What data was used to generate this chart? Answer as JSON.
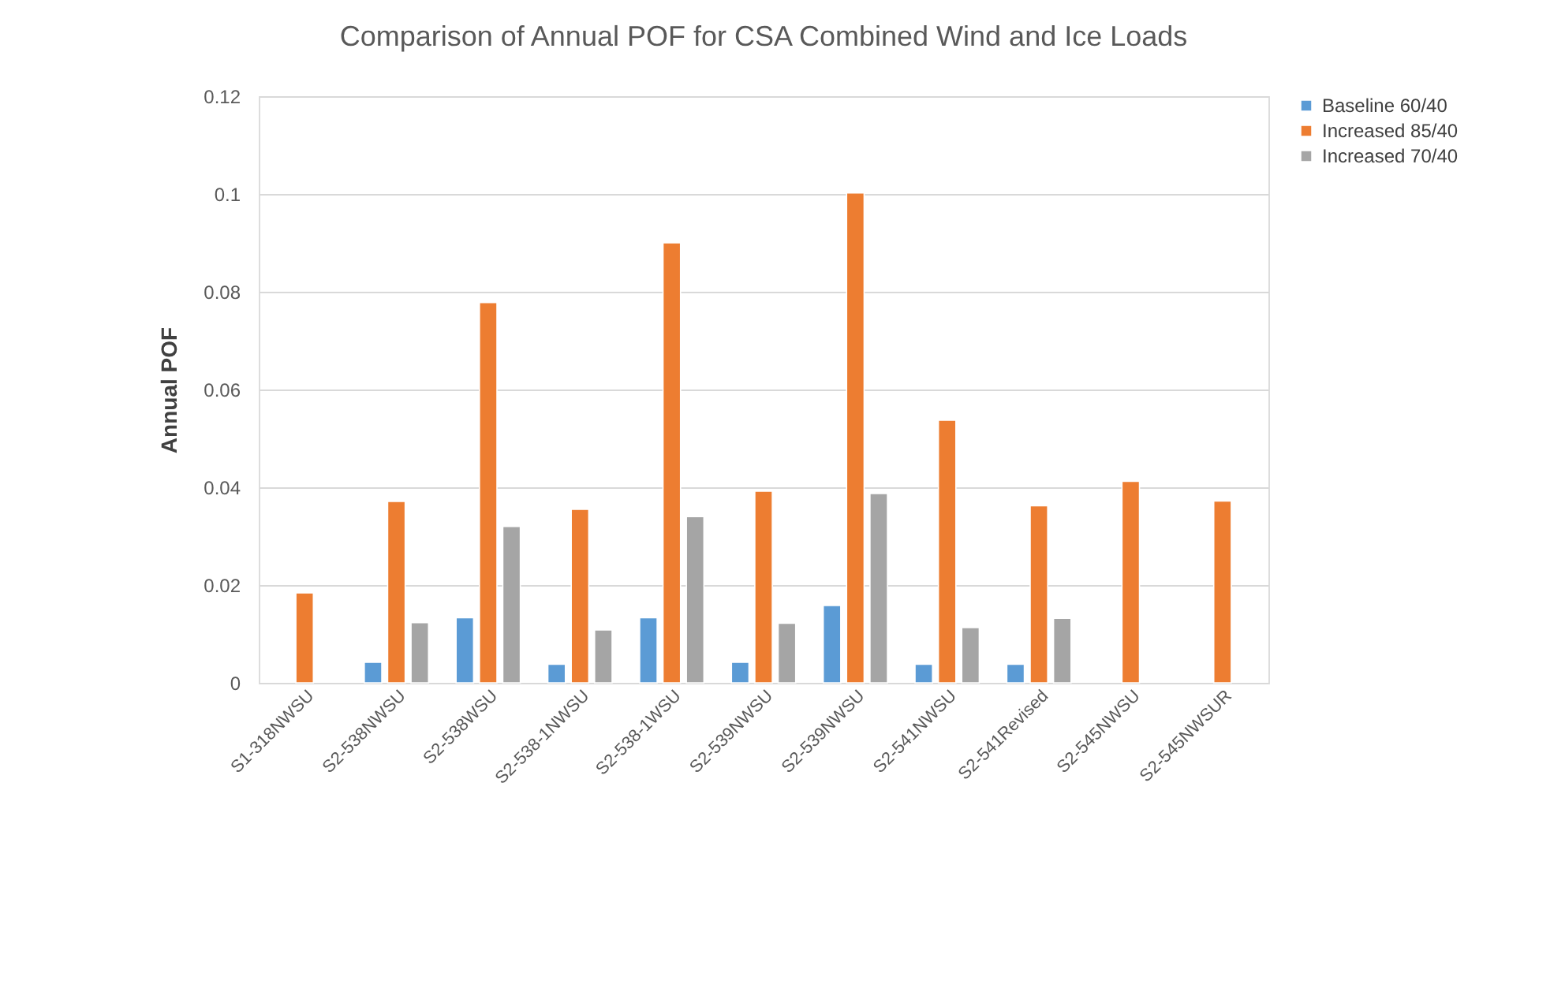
{
  "chart_data": {
    "type": "bar",
    "title": "Comparison  of Annual POF for CSA Combined  Wind and Ice Loads",
    "ylabel": "Annual POF",
    "categories": [
      "S1-318NWSU",
      "S2-538NWSU",
      "S2-538WSU",
      "S2-538-1NWSU",
      "S2-538-1WSU",
      "S2-539NWSU",
      "S2-539NWSU",
      "S2-541NWSU",
      "S2-541Revised",
      "S2-545NWSU",
      "S2-545NWSUR"
    ],
    "series": [
      {
        "name": "Baseline 60/40",
        "color": "#5b9bd5",
        "values": [
          null,
          0.0042,
          0.0133,
          0.0038,
          0.0133,
          0.0042,
          0.0158,
          0.0038,
          0.0038,
          null,
          null
        ]
      },
      {
        "name": "Increased 85/40",
        "color": "#ed7d31",
        "values": [
          0.0184,
          0.0371,
          0.0778,
          0.0355,
          0.09,
          0.0392,
          0.1002,
          0.0537,
          0.0362,
          0.0412,
          0.0372
        ]
      },
      {
        "name": "Increased 70/40",
        "color": "#a5a5a5",
        "values": [
          null,
          0.0123,
          0.032,
          0.0108,
          0.034,
          0.0122,
          0.0387,
          0.0113,
          0.0132,
          null,
          null
        ]
      }
    ],
    "ylim": [
      0,
      0.12
    ],
    "yticks": [
      0,
      0.02,
      0.04,
      0.06,
      0.08,
      0.1,
      0.12
    ],
    "grid": "y",
    "legend": "right"
  }
}
